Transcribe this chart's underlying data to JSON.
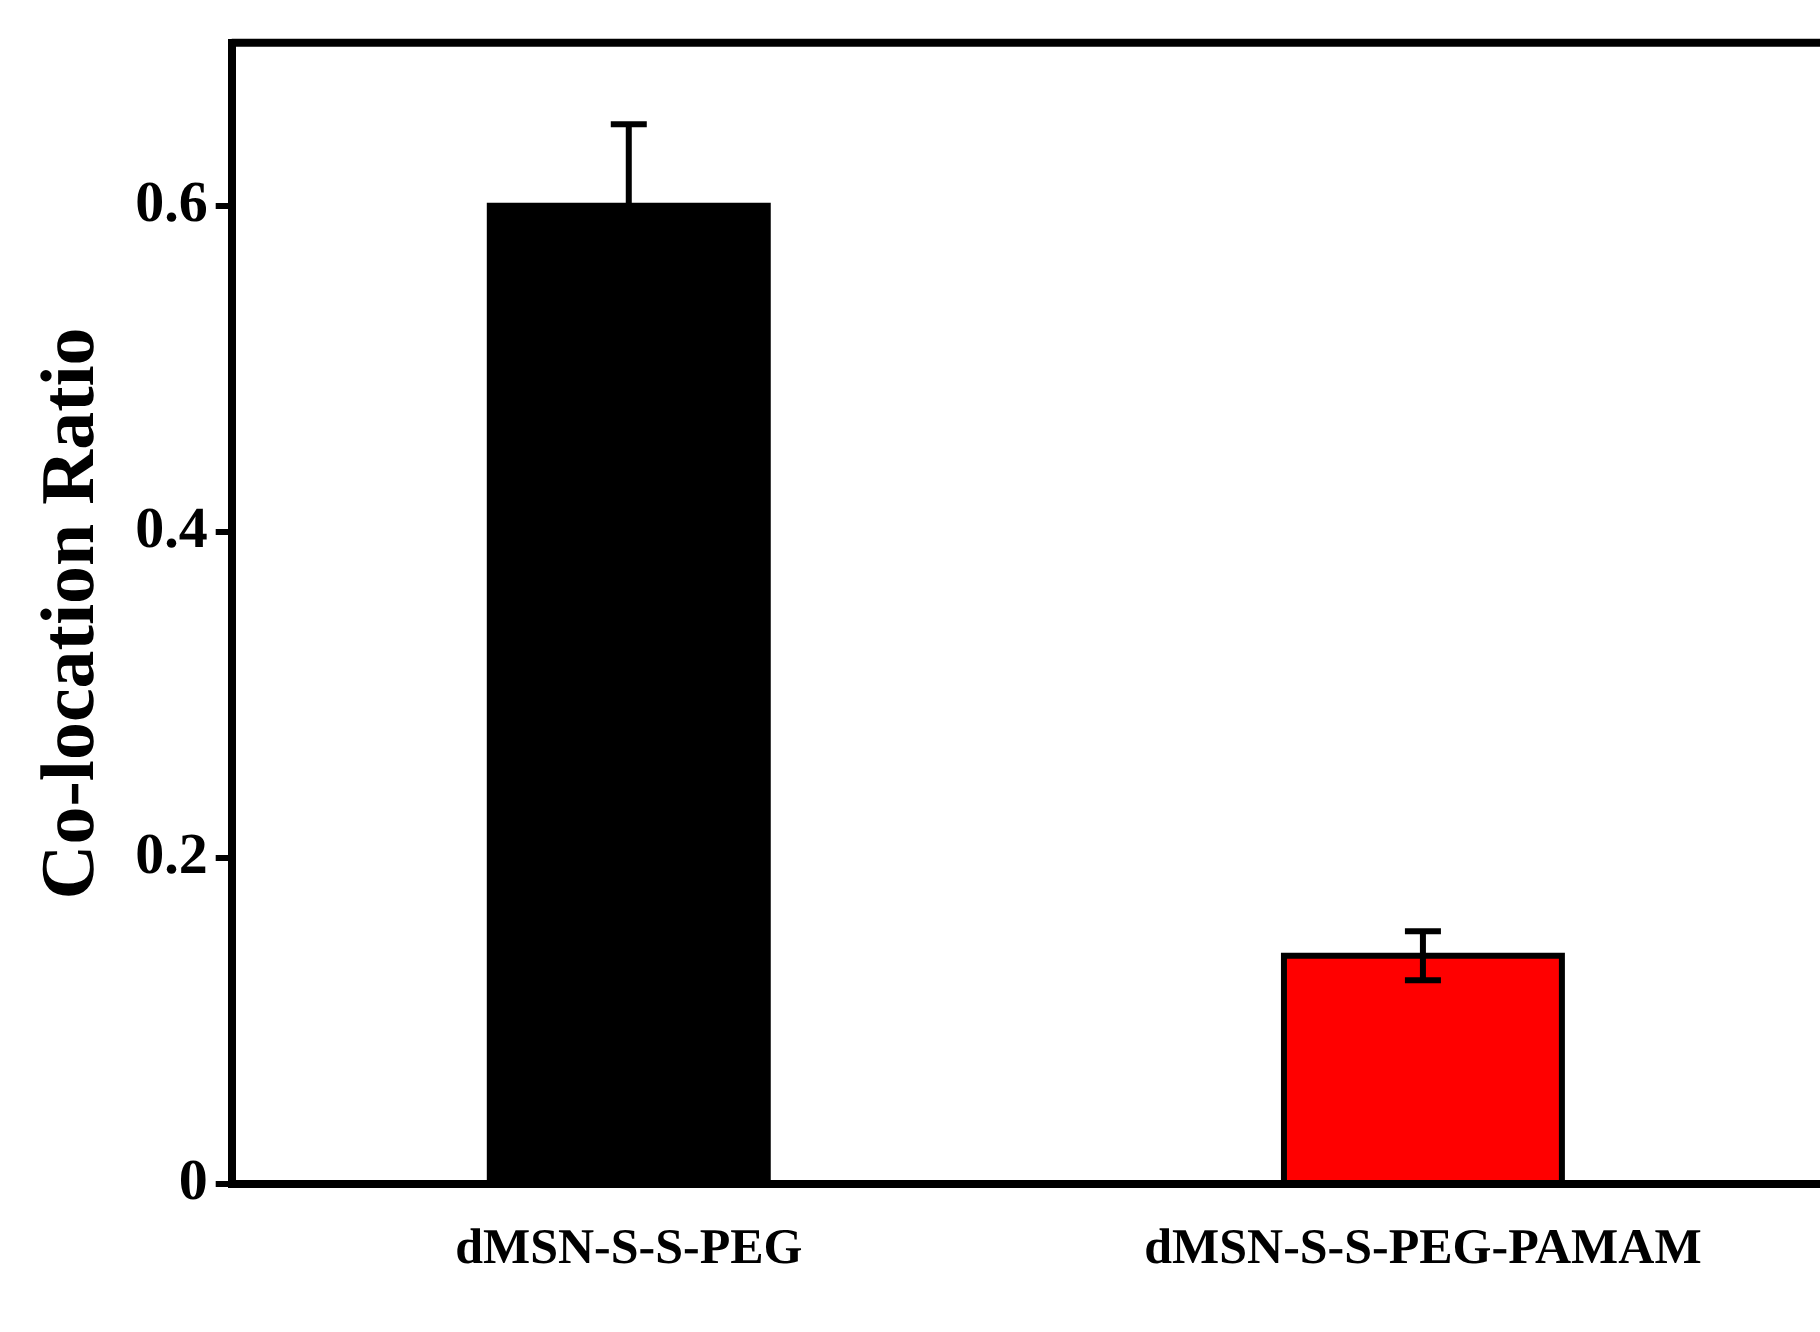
{
  "chart_data": {
    "type": "bar",
    "ylabel": "Co-location Ratio",
    "categories": [
      "dMSN-S-S-PEG",
      "dMSN-S-S-PEG-PAMAM"
    ],
    "values": [
      0.6,
      0.14
    ],
    "colors": [
      "#000000",
      "#ff0000"
    ],
    "errors": [
      0.05,
      0.015
    ],
    "ylim": [
      0,
      0.7
    ],
    "yticks": [
      0,
      0.2,
      0.4,
      0.6
    ],
    "grid": false,
    "legend": false
  }
}
